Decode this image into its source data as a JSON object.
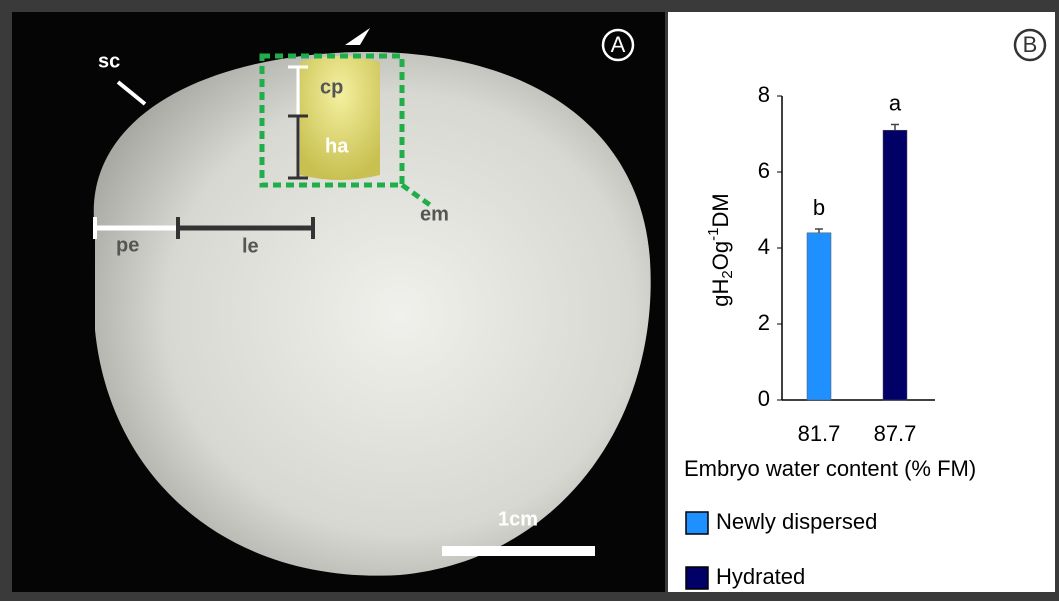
{
  "panel_a": {
    "letter": "A",
    "labels": {
      "sc": "sc",
      "cp": "cp",
      "ha": "ha",
      "em": "em",
      "pe": "pe",
      "le": "le"
    },
    "scale_bar": "1cm"
  },
  "chart_data": {
    "type": "bar",
    "panel": "B",
    "categories": [
      "81.7",
      "87.7"
    ],
    "series": [
      {
        "name": "Newly dispersed",
        "color": "#1e90ff",
        "values": [
          4.4,
          null
        ],
        "errors": [
          0.1,
          null
        ],
        "value_labels": [
          "b",
          null
        ]
      },
      {
        "name": "Hydrated",
        "color": "#000066",
        "values": [
          null,
          7.1
        ],
        "errors": [
          null,
          0.15
        ],
        "value_labels": [
          null,
          "a"
        ]
      }
    ],
    "y_label": [
      "gH",
      "2",
      "Og",
      "-1",
      "DM"
    ],
    "x_label": "Embryo water content (% FM)",
    "ylim": [
      0,
      8
    ],
    "yticks": [
      0,
      2,
      4,
      6,
      8
    ],
    "grid": false
  }
}
